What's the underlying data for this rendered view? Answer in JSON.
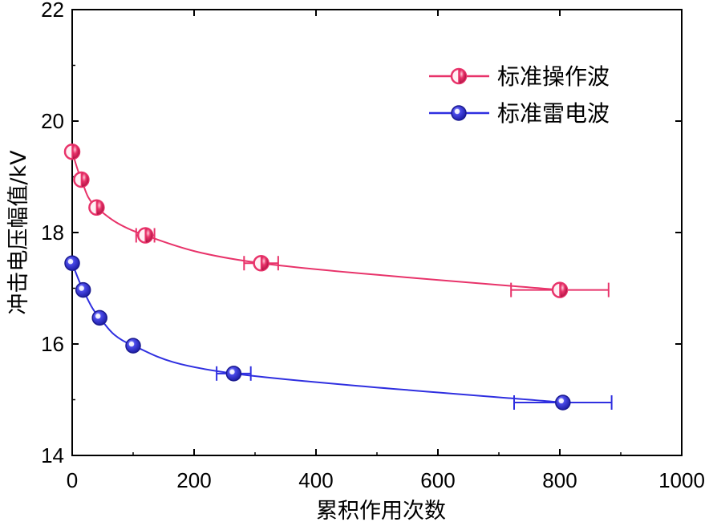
{
  "chart_data": {
    "type": "line",
    "xlabel": "累积作用次数",
    "ylabel": "冲击电压幅值/kV",
    "xlim": [
      0,
      1000
    ],
    "ylim": [
      14,
      22
    ],
    "xticks": [
      0,
      200,
      400,
      600,
      800,
      1000
    ],
    "yticks": [
      14,
      16,
      18,
      20,
      22
    ],
    "xtick_labels": [
      "0",
      "200",
      "400",
      "600",
      "800",
      "1000"
    ],
    "ytick_labels": [
      "14",
      "16",
      "18",
      "20",
      "22"
    ],
    "grid": false,
    "legend_position": "top-right",
    "series": [
      {
        "name": "标准操作波",
        "color": "#e8336a",
        "marker": "half-filled-circle",
        "points": [
          {
            "x": 0,
            "y": 19.45,
            "xerr": null
          },
          {
            "x": 15,
            "y": 18.95,
            "xerr": null
          },
          {
            "x": 40,
            "y": 18.45,
            "xerr": null
          },
          {
            "x": 120,
            "y": 17.95,
            "xerr": 15
          },
          {
            "x": 310,
            "y": 17.45,
            "xerr": 28
          },
          {
            "x": 800,
            "y": 16.97,
            "xerr": 80
          }
        ]
      },
      {
        "name": "标准雷电波",
        "color": "#2f2fe0",
        "marker": "sphere",
        "points": [
          {
            "x": 0,
            "y": 17.45,
            "xerr": null
          },
          {
            "x": 18,
            "y": 16.97,
            "xerr": null
          },
          {
            "x": 45,
            "y": 16.47,
            "xerr": null
          },
          {
            "x": 100,
            "y": 15.97,
            "xerr": null
          },
          {
            "x": 265,
            "y": 15.47,
            "xerr": 28
          },
          {
            "x": 805,
            "y": 14.95,
            "xerr": 80
          }
        ]
      }
    ]
  }
}
